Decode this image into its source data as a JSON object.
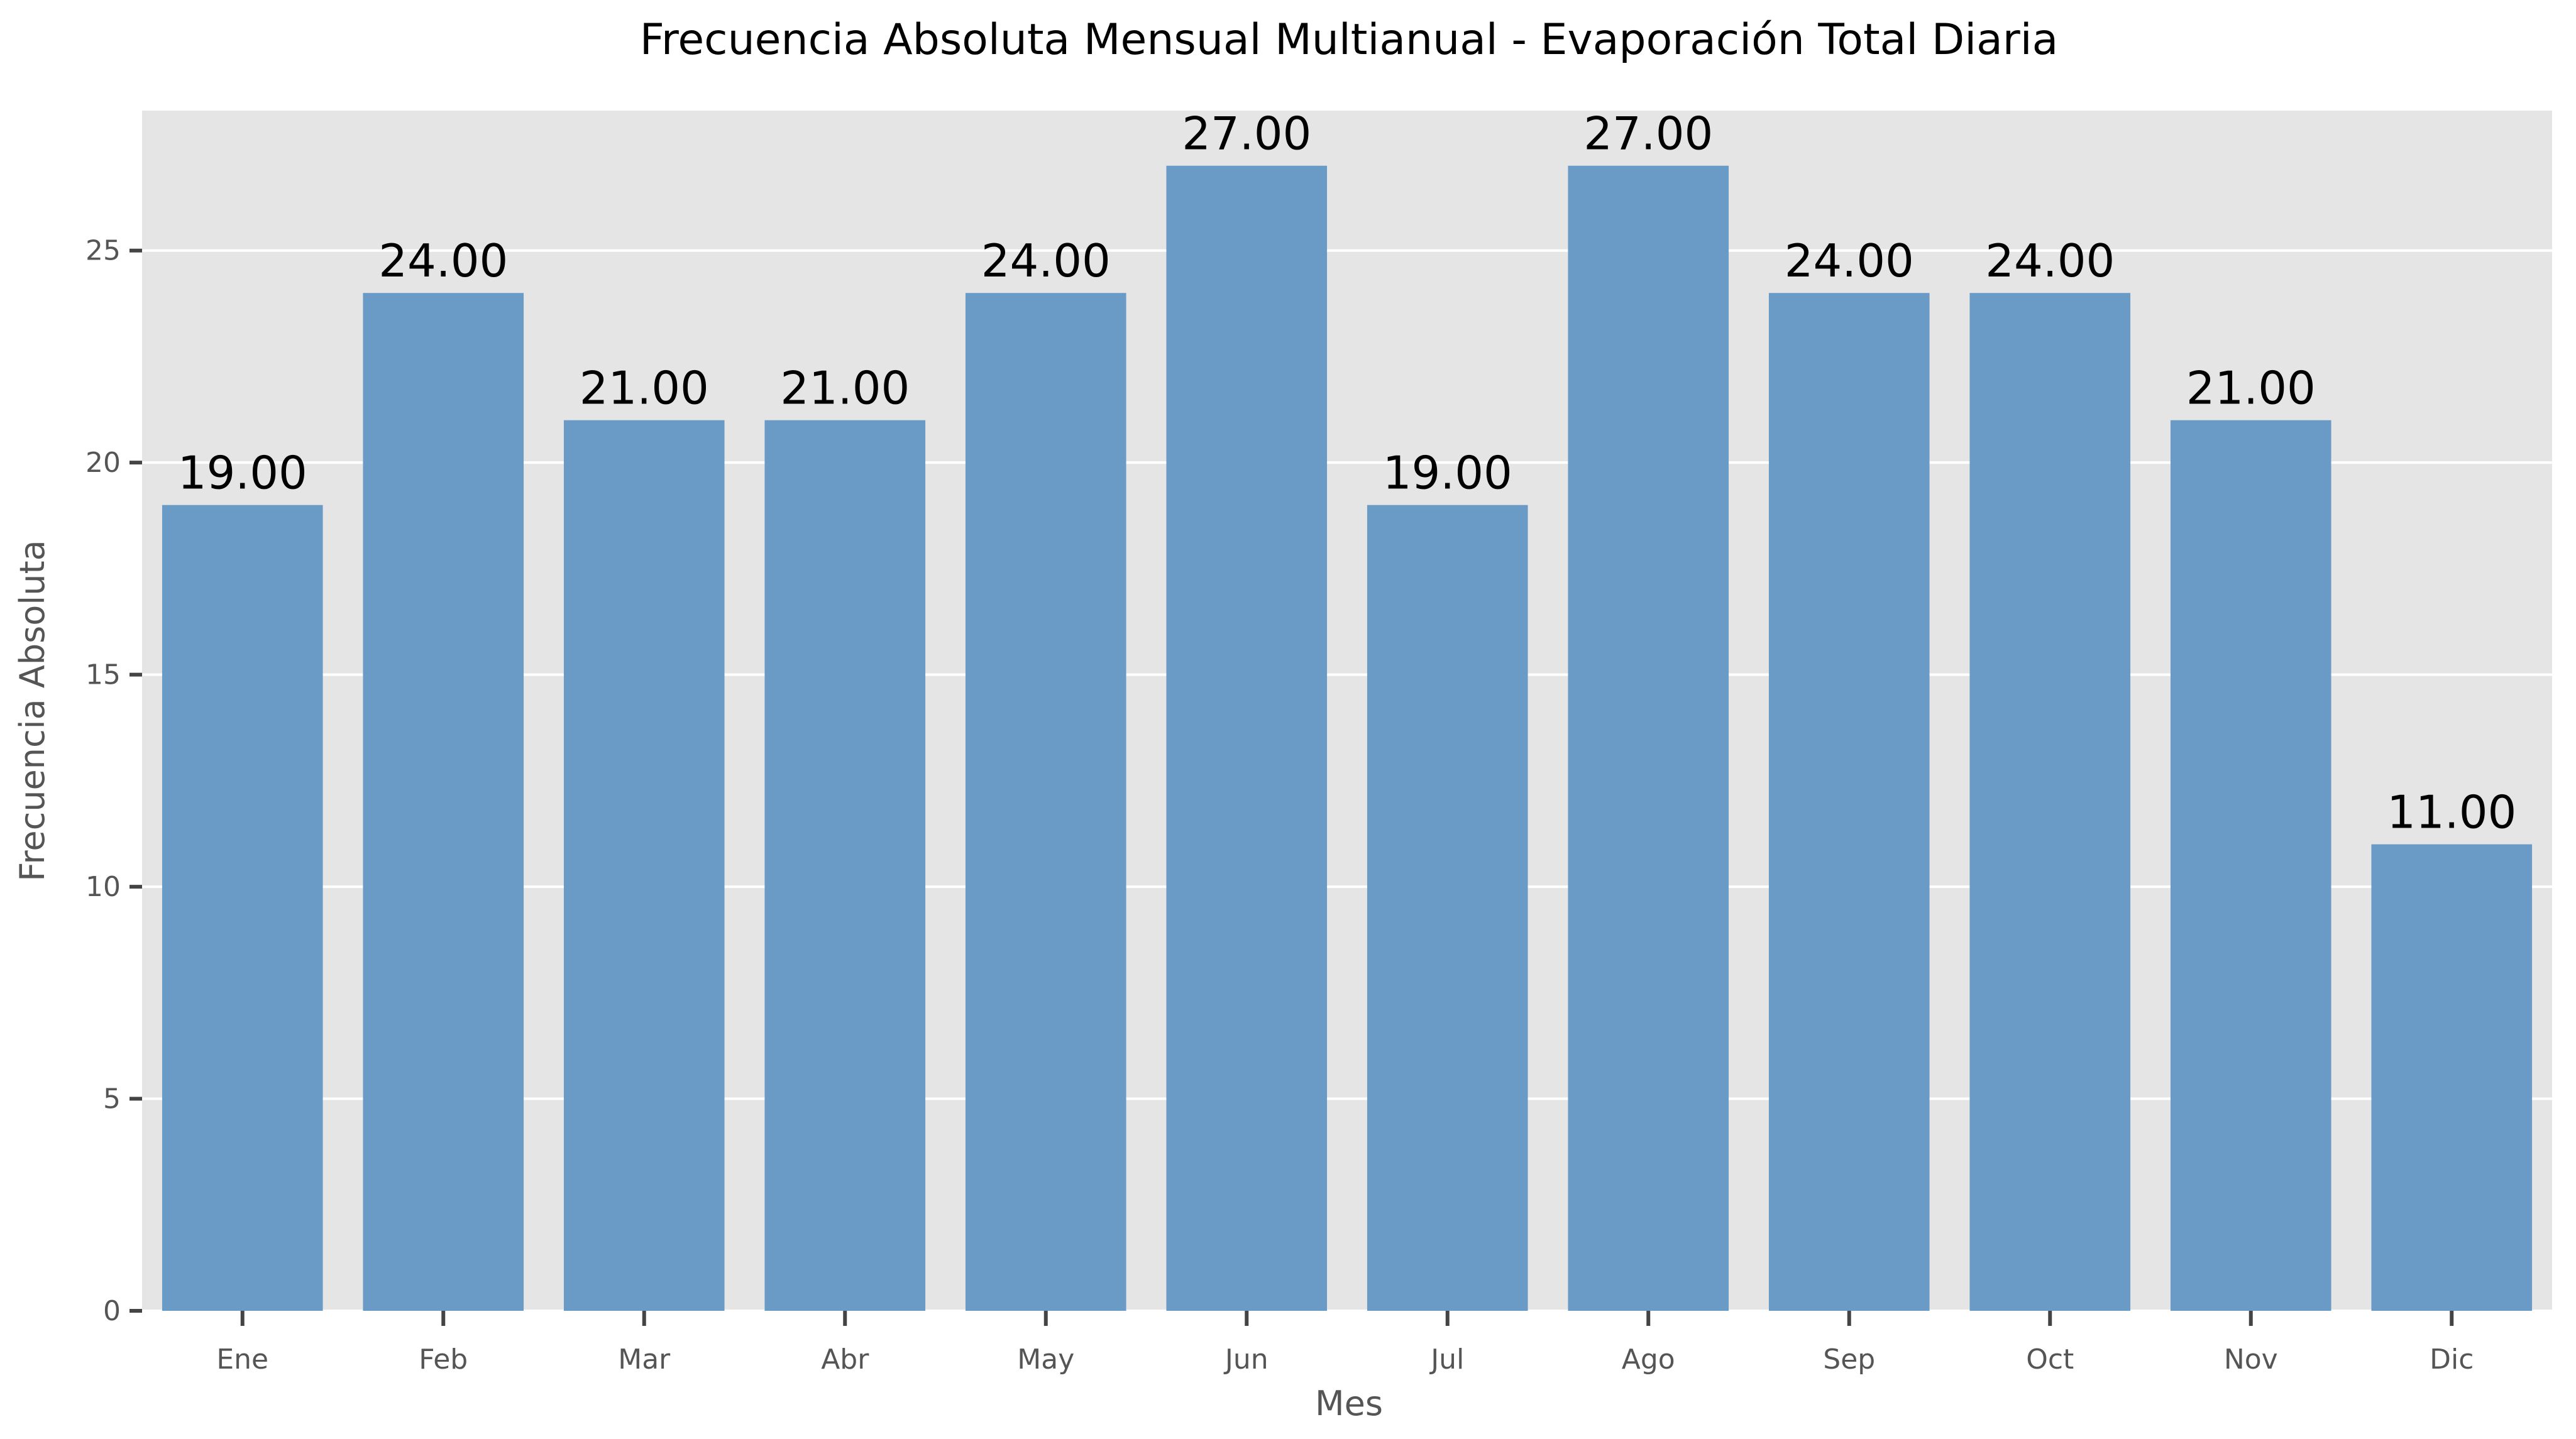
{
  "chart_data": {
    "type": "bar",
    "title": "Frecuencia Absoluta Mensual Multianual - Evaporación Total Diaria",
    "xlabel": "Mes",
    "ylabel": "Frecuencia Absoluta",
    "categories": [
      "Ene",
      "Feb",
      "Mar",
      "Abr",
      "May",
      "Jun",
      "Jul",
      "Ago",
      "Sep",
      "Oct",
      "Nov",
      "Dic"
    ],
    "values": [
      19,
      24,
      21,
      21,
      24,
      27,
      19,
      27,
      24,
      24,
      21,
      11
    ],
    "value_labels": [
      "19.00",
      "24.00",
      "21.00",
      "21.00",
      "24.00",
      "27.00",
      "19.00",
      "27.00",
      "24.00",
      "24.00",
      "21.00",
      "11.00"
    ],
    "ylim": [
      0,
      28.3
    ],
    "yticks": [
      0,
      5,
      10,
      15,
      20,
      25
    ],
    "ytick_labels": [
      "0",
      "5",
      "10",
      "15",
      "20",
      "25"
    ],
    "grid": true,
    "legend": "none",
    "colors": {
      "bar": "#6a9bc7",
      "plot_background": "#e5e5e5",
      "grid": "#ffffff",
      "tick_mark": "#444444"
    }
  }
}
